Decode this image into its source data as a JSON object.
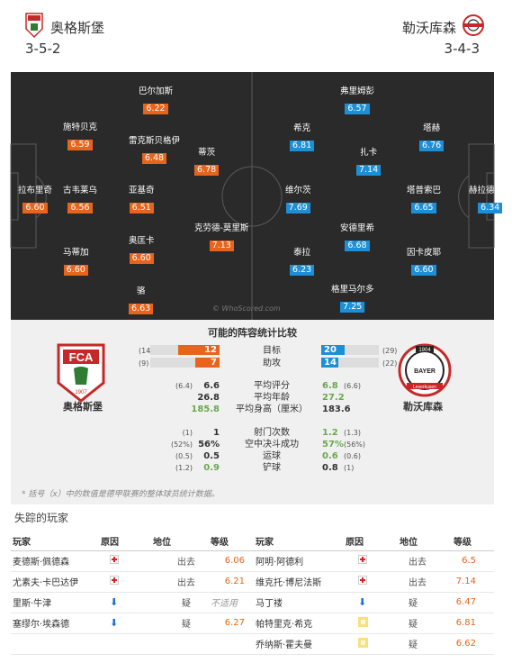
{
  "home": {
    "name": "奥格斯堡",
    "formation": "3-5-2",
    "crest": "fca-crest-icon",
    "crest_text": "FCA",
    "crest_year": "1907",
    "color": "#e8631b"
  },
  "away": {
    "name": "勒沃库森",
    "formation": "3-4-3",
    "crest": "bayer-crest-icon",
    "crest_text": "BAYER",
    "crest_year": "1904",
    "crest_sub": "Leverkusen",
    "color": "#1d8fd6"
  },
  "pitch": {
    "watermark": "© WhoScored.com",
    "home_players": [
      {
        "name": "巴尔加斯",
        "rating": "6.22"
      },
      {
        "name": "施特贝克",
        "rating": "6.59"
      },
      {
        "name": "雷克斯贝格伊",
        "rating": "6.48"
      },
      {
        "name": "蒂茨",
        "rating": "6.78"
      },
      {
        "name": "拉布里奇",
        "rating": "6.60"
      },
      {
        "name": "古韦莱乌",
        "rating": "6.56"
      },
      {
        "name": "亚基奇",
        "rating": "6.51"
      },
      {
        "name": "克劳德-莫里斯",
        "rating": "7.13"
      },
      {
        "name": "马蒂加",
        "rating": "6.60"
      },
      {
        "name": "奥匡卡",
        "rating": "6.60"
      },
      {
        "name": "骆",
        "rating": "6.63"
      }
    ],
    "away_players": [
      {
        "name": "弗里姆彭",
        "rating": "6.57"
      },
      {
        "name": "希克",
        "rating": "6.81"
      },
      {
        "name": "塔赫",
        "rating": "6.76"
      },
      {
        "name": "扎卡",
        "rating": "7.14"
      },
      {
        "name": "维尔茨",
        "rating": "7.69"
      },
      {
        "name": "塔普索巴",
        "rating": "6.65"
      },
      {
        "name": "赫拉德茨基",
        "rating": "6.34"
      },
      {
        "name": "安德里希",
        "rating": "6.68"
      },
      {
        "name": "泰拉",
        "rating": "6.23"
      },
      {
        "name": "因卡皮耶",
        "rating": "6.60"
      },
      {
        "name": "格里马尔多",
        "rating": "7.25"
      }
    ]
  },
  "stats": {
    "title": "可能的阵容统计比较",
    "bars": [
      {
        "label": "目标",
        "home_avg": "(14",
        "home": "12",
        "away": "20",
        "away_avg": "(29)",
        "home_frac": 0.6,
        "away_frac": 0.4
      },
      {
        "label": "助攻",
        "home_avg": "(9)",
        "home": "7",
        "away": "14",
        "away_avg": "(22)",
        "home_frac": 0.35,
        "away_frac": 0.3
      }
    ],
    "rows1": [
      {
        "label": "平均评分",
        "home_avg": "(6.4)",
        "home": "6.6",
        "away": "6.8",
        "away_avg": "(6.6)",
        "win": "away"
      },
      {
        "label": "平均年龄",
        "home_avg": "",
        "home": "26.8",
        "away": "27.2",
        "away_avg": "",
        "win": "away"
      },
      {
        "label": "平均身高（厘米）",
        "home_avg": "",
        "home": "185.8",
        "away": "183.6",
        "away_avg": "",
        "win": "home"
      }
    ],
    "rows2": [
      {
        "label": "射门次数",
        "home_avg": "(1)",
        "home": "1",
        "away": "1.2",
        "away_avg": "(1.3)",
        "win": "away"
      },
      {
        "label": "空中决斗成功",
        "home_avg": "(52%)",
        "home": "56%",
        "away": "57%",
        "away_avg": "(56%)",
        "win": "away"
      },
      {
        "label": "运球",
        "home_avg": "(0.5)",
        "home": "0.5",
        "away": "0.6",
        "away_avg": "(0.6)",
        "win": "away"
      },
      {
        "label": "铲球",
        "home_avg": "(1.2)",
        "home": "0.9",
        "away": "0.8",
        "away_avg": "(1)",
        "win": "home"
      }
    ],
    "note": "* 括号（x）中的数值是德甲联赛的整体球员统计数据。"
  },
  "missing": {
    "title": "失踪的玩家",
    "headers": [
      "玩家",
      "原因",
      "地位",
      "等级",
      "玩家",
      "原因",
      "地位",
      "等级"
    ],
    "rows": [
      {
        "hp": "麦德斯·佩德森",
        "hr": "cross",
        "hs": "出去",
        "hv": "6.06",
        "ap": "阿明·阿德利",
        "ar": "cross",
        "as": "出去",
        "av": "6.5"
      },
      {
        "hp": "尤素夫·卡巴达伊",
        "hr": "cross",
        "hs": "出去",
        "hv": "6.21",
        "ap": "维克托·博尼法斯",
        "ar": "cross",
        "as": "出去",
        "av": "7.14"
      },
      {
        "hp": "里斯·牛津",
        "hr": "down",
        "hs": "疑",
        "hv": "不适用",
        "ap": "马丁褛",
        "ar": "down",
        "as": "疑",
        "av": "6.47"
      },
      {
        "hp": "塞缪尔·埃森德",
        "hr": "down",
        "hs": "疑",
        "hv": "6.27",
        "ap": "帕特里克·希克",
        "ar": "card",
        "as": "疑",
        "av": "6.81"
      },
      {
        "hp": "",
        "hr": "",
        "hs": "",
        "hv": "",
        "ap": "乔纳斯·霍夫曼",
        "ar": "card",
        "as": "疑",
        "av": "6.62"
      }
    ]
  }
}
